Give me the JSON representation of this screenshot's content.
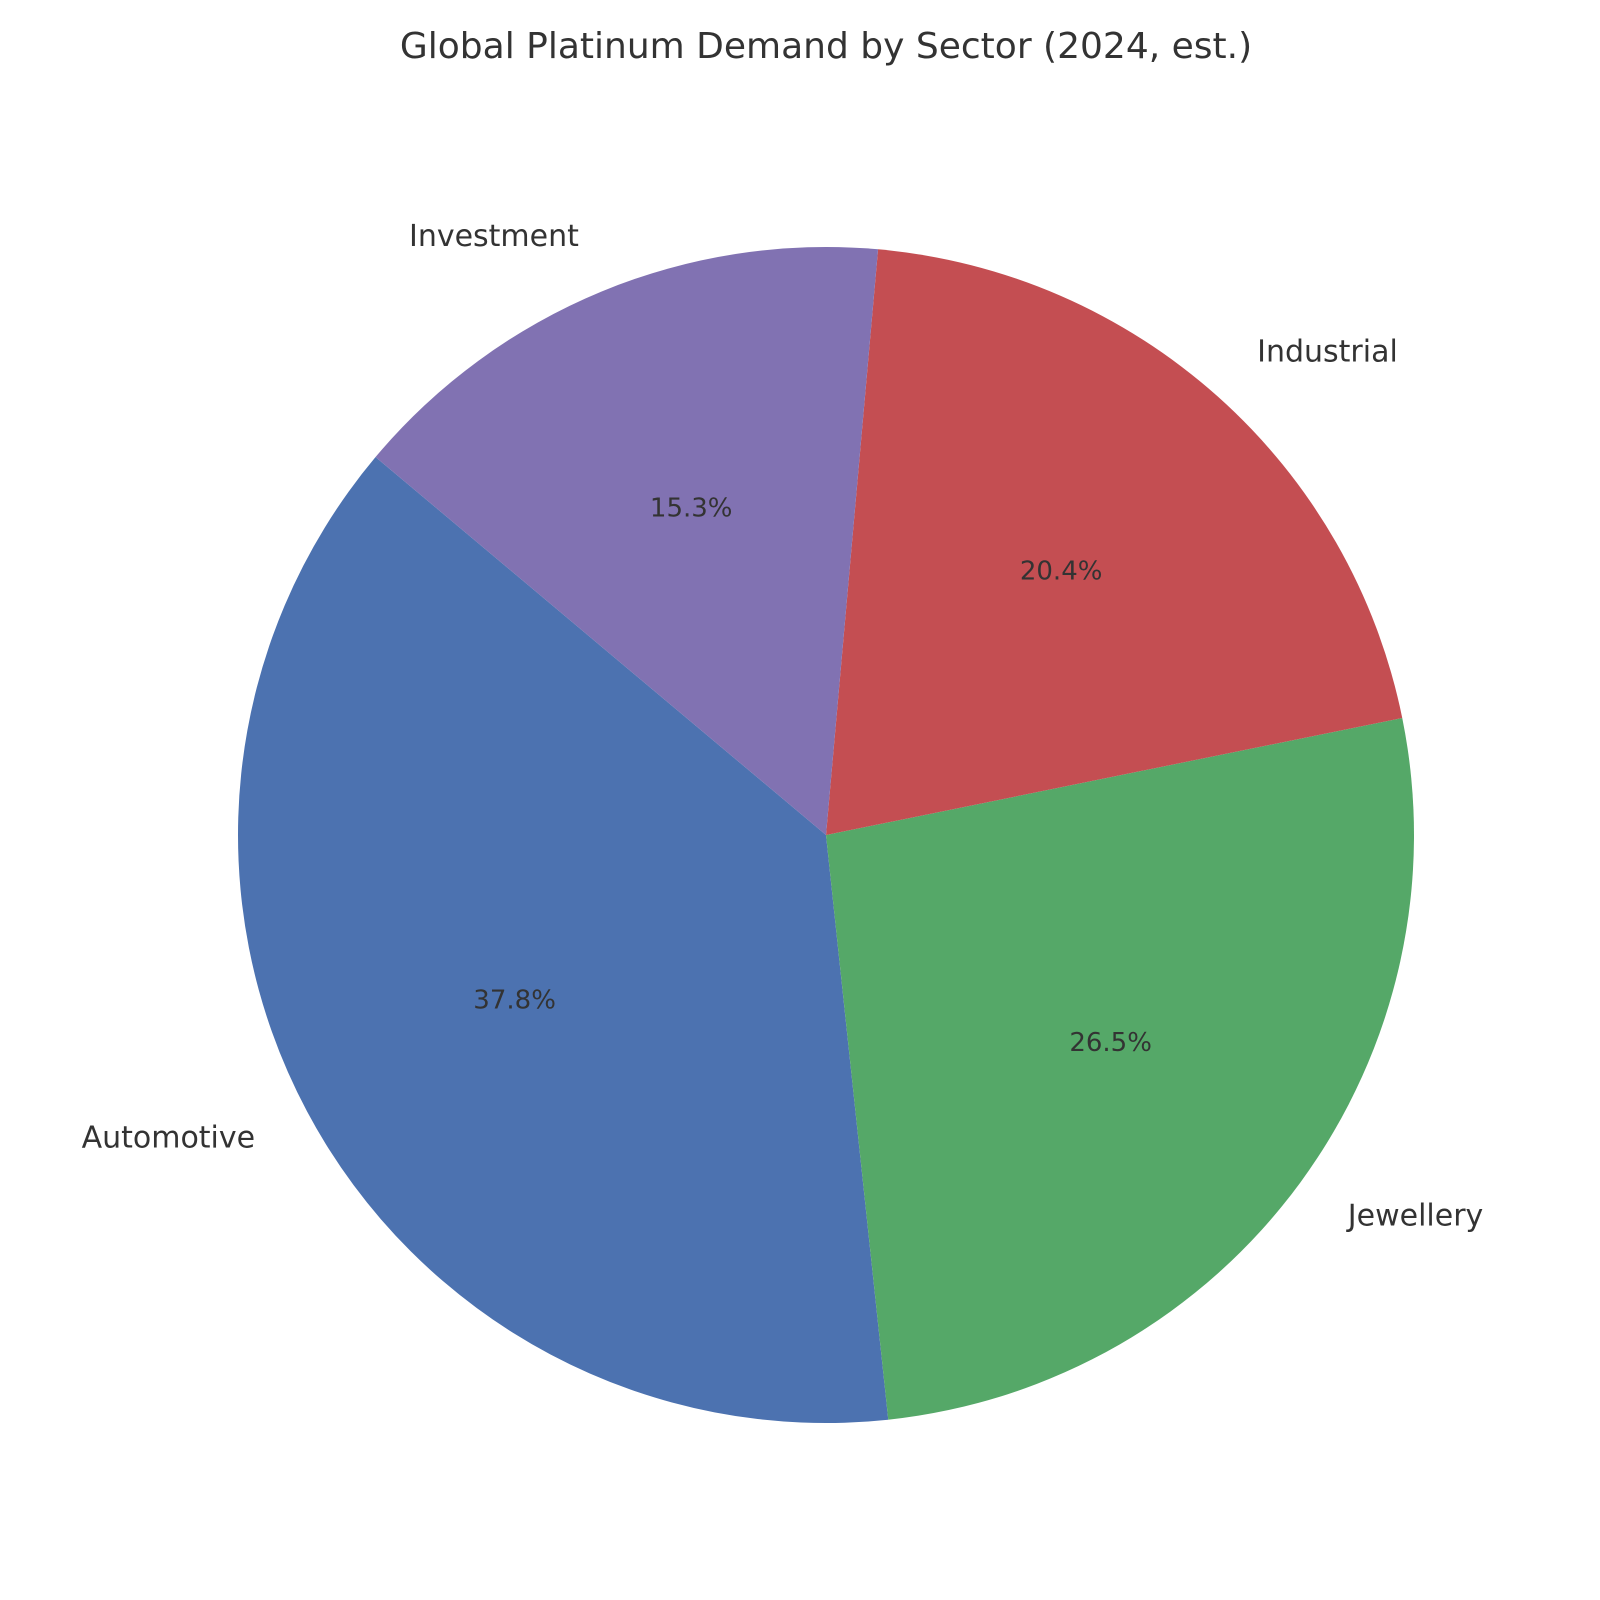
{
  "chart_data": {
    "type": "pie",
    "title": "Global Platinum Demand by Sector (2024, est.)",
    "categories": [
      "Automotive",
      "Jewellery",
      "Industrial",
      "Investment"
    ],
    "values": [
      37.8,
      26.5,
      20.4,
      15.3
    ],
    "value_labels": [
      "37.8%",
      "26.5%",
      "20.4%",
      "15.3%"
    ],
    "colors": [
      "#4c72b0",
      "#55a868",
      "#c44e52",
      "#8172b2"
    ]
  }
}
